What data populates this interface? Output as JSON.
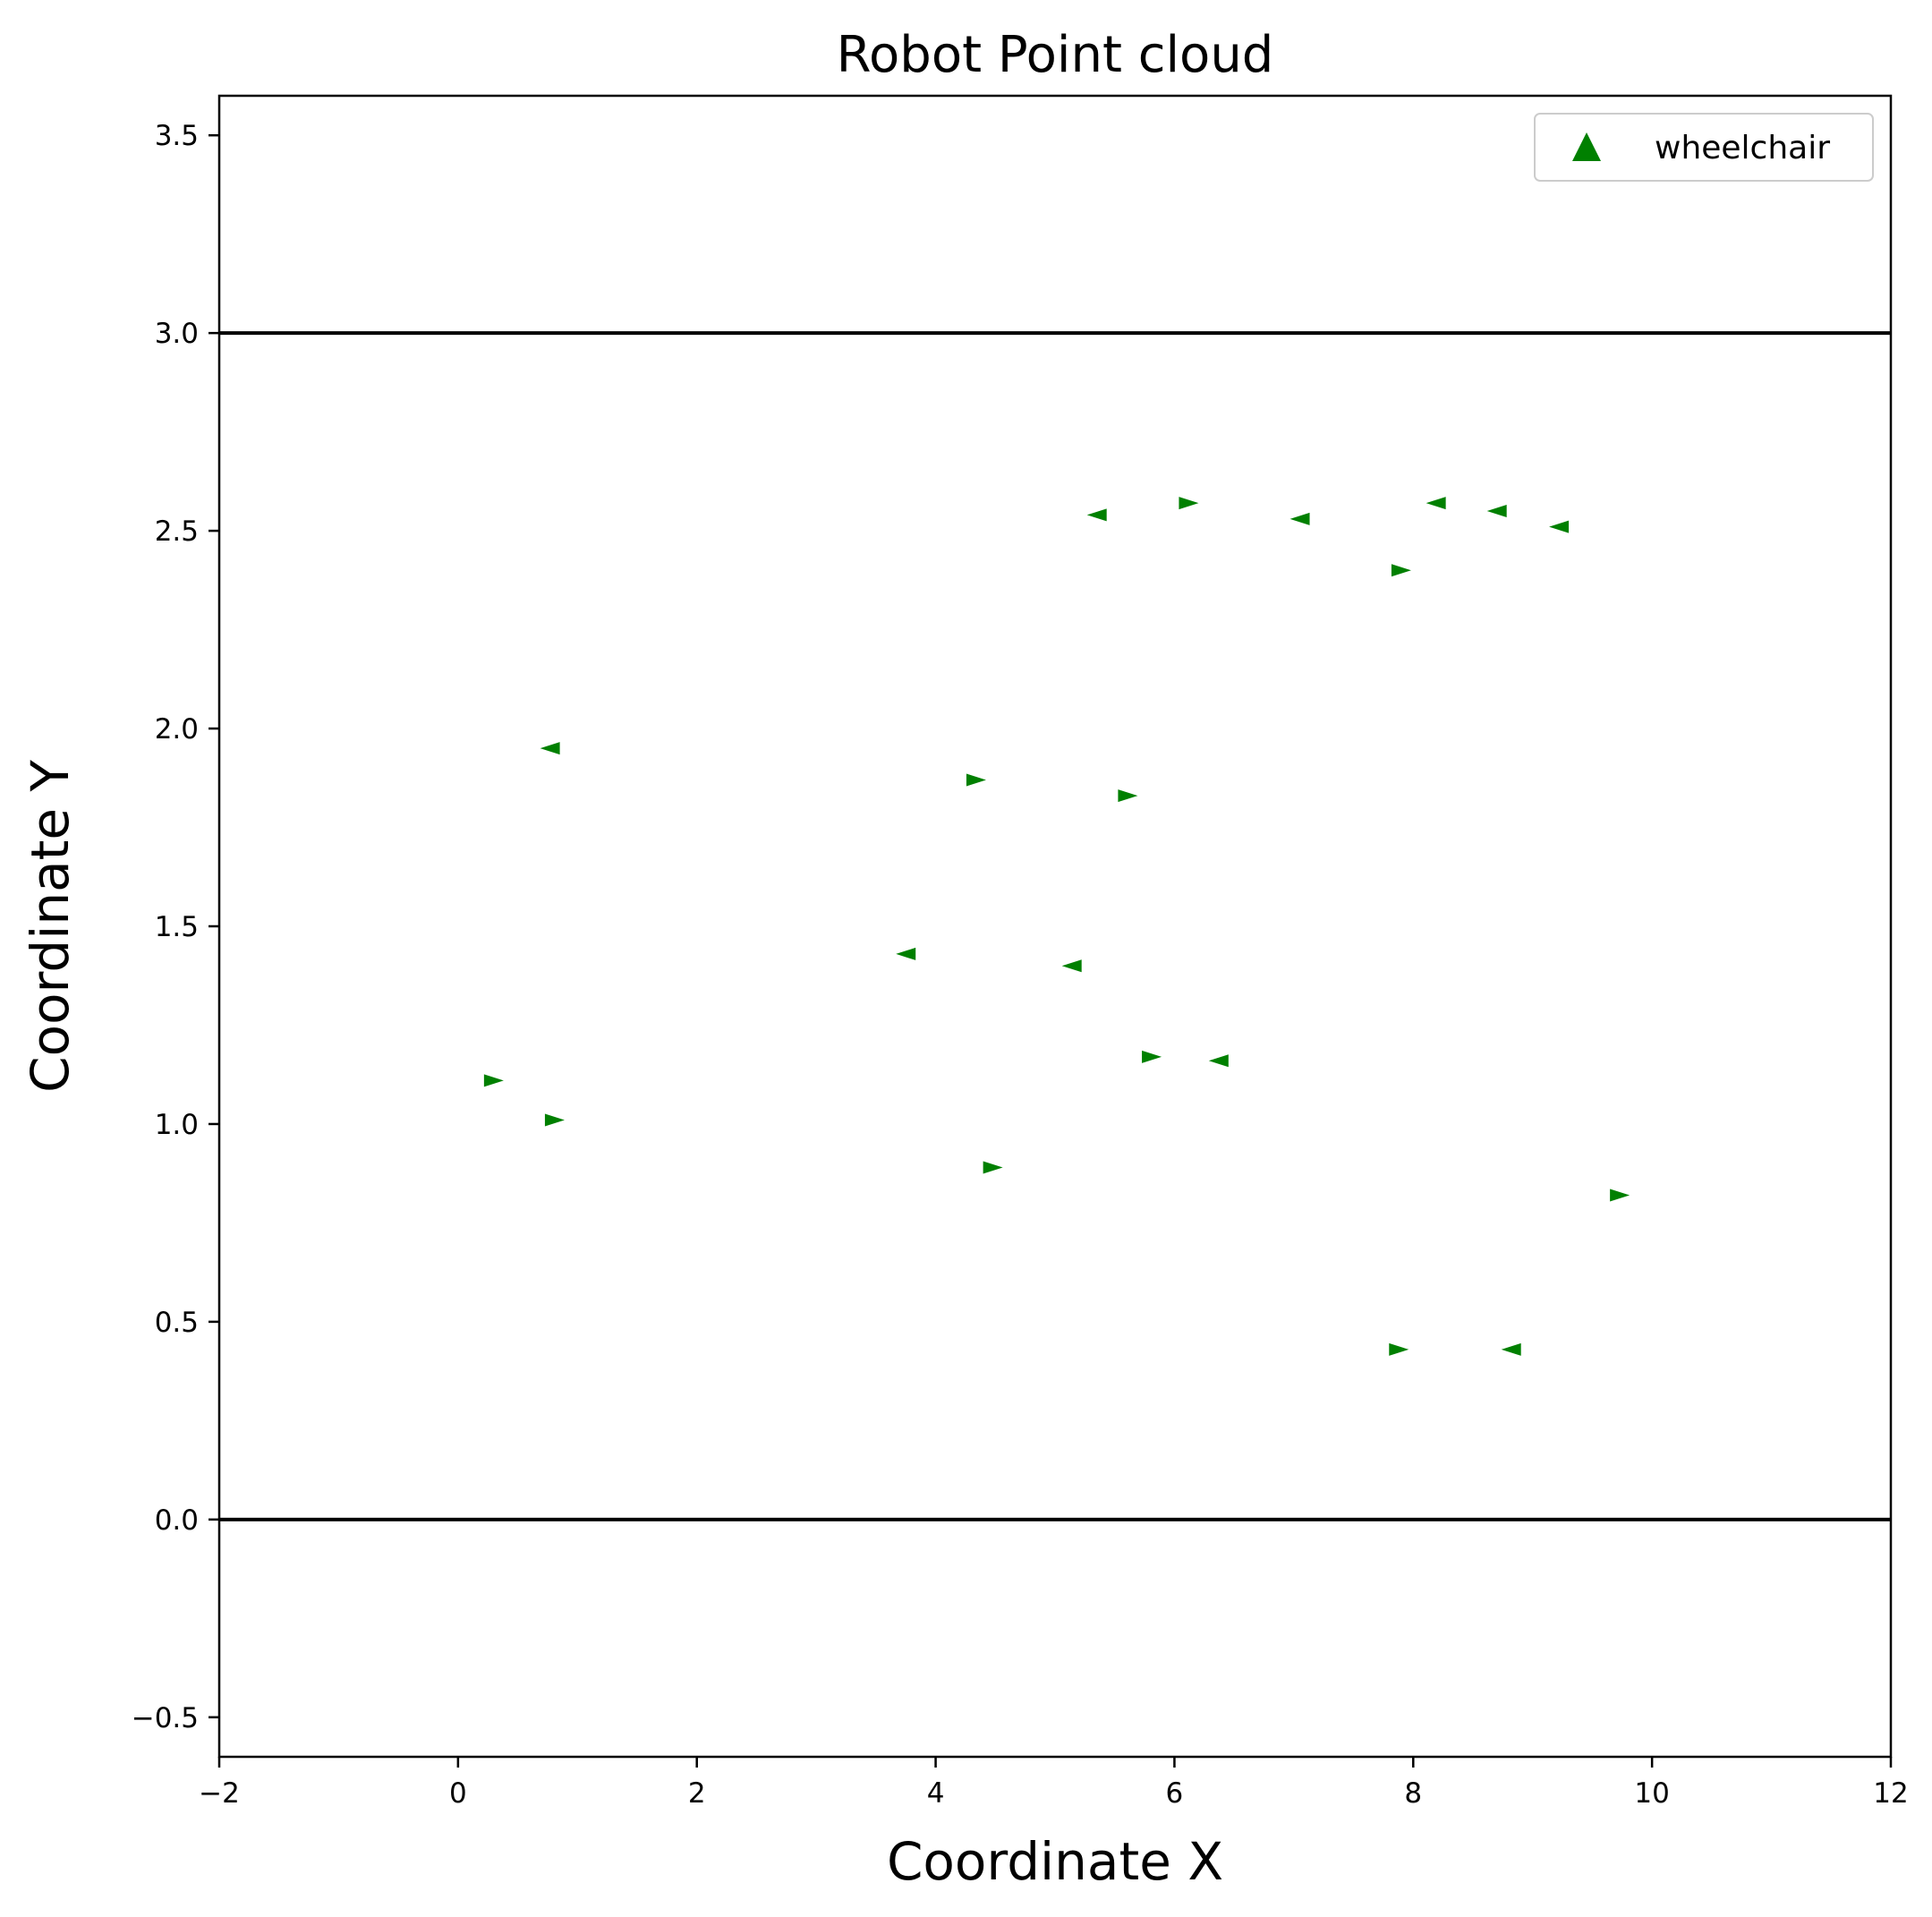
{
  "chart_data": {
    "type": "scatter",
    "title": "Robot Point cloud",
    "xlabel": "Coordinate X",
    "ylabel": "Coordinate Y",
    "xlim": [
      -2,
      12
    ],
    "ylim": [
      -0.6,
      3.6
    ],
    "x_ticks": [
      -2,
      0,
      2,
      4,
      6,
      8,
      10,
      12
    ],
    "x_tick_labels": [
      "−2",
      "0",
      "2",
      "4",
      "6",
      "8",
      "10",
      "12"
    ],
    "y_ticks": [
      -0.5,
      0.0,
      0.5,
      1.0,
      1.5,
      2.0,
      2.5,
      3.0,
      3.5
    ],
    "y_tick_labels": [
      "−0.5",
      "0.0",
      "0.5",
      "1.0",
      "1.5",
      "2.0",
      "2.5",
      "3.0",
      "3.5"
    ],
    "grid": false,
    "legend": {
      "placement": "top-right",
      "entries": [
        {
          "label": "wheelchair",
          "marker": "triangle-up",
          "color": "#008000"
        }
      ]
    },
    "boundary_lines": [
      {
        "y": 3.0,
        "color": "#000000"
      },
      {
        "y": 0.0,
        "color": "#000000"
      }
    ],
    "series": [
      {
        "name": "wheelchair",
        "color": "#008000",
        "points": [
          {
            "x": 5.35,
            "y": 2.54,
            "dir": "left"
          },
          {
            "x": 6.12,
            "y": 2.57,
            "dir": "right"
          },
          {
            "x": 7.05,
            "y": 2.53,
            "dir": "left"
          },
          {
            "x": 8.19,
            "y": 2.57,
            "dir": "left"
          },
          {
            "x": 8.7,
            "y": 2.55,
            "dir": "left"
          },
          {
            "x": 9.22,
            "y": 2.51,
            "dir": "left"
          },
          {
            "x": 7.9,
            "y": 2.4,
            "dir": "right"
          },
          {
            "x": 0.77,
            "y": 1.95,
            "dir": "left"
          },
          {
            "x": 4.34,
            "y": 1.87,
            "dir": "right"
          },
          {
            "x": 5.61,
            "y": 1.83,
            "dir": "right"
          },
          {
            "x": 3.75,
            "y": 1.43,
            "dir": "left"
          },
          {
            "x": 5.14,
            "y": 1.4,
            "dir": "left"
          },
          {
            "x": 5.81,
            "y": 1.17,
            "dir": "right"
          },
          {
            "x": 6.37,
            "y": 1.16,
            "dir": "left"
          },
          {
            "x": 0.3,
            "y": 1.11,
            "dir": "right"
          },
          {
            "x": 0.81,
            "y": 1.01,
            "dir": "right"
          },
          {
            "x": 4.48,
            "y": 0.89,
            "dir": "right"
          },
          {
            "x": 9.73,
            "y": 0.82,
            "dir": "right"
          },
          {
            "x": 7.88,
            "y": 0.43,
            "dir": "right"
          },
          {
            "x": 8.82,
            "y": 0.43,
            "dir": "left"
          }
        ]
      }
    ]
  }
}
